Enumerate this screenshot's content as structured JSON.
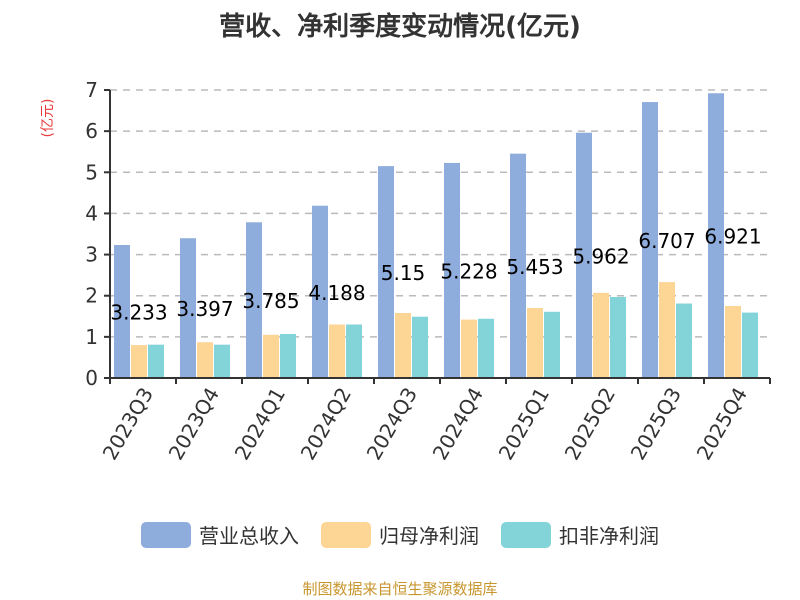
{
  "colors": {
    "series": [
      "#8eacdc",
      "#fdd595",
      "#83d4d8"
    ],
    "ylabel": "#e83b3b",
    "source": "#c8962e",
    "grid": "#bbbbbb",
    "axis": "#333333"
  },
  "chart_data": {
    "type": "bar",
    "title": "营收、净利季度变动情况(亿元)",
    "ylabel": "(亿元)",
    "xlabel": "",
    "ylim": [
      0,
      7
    ],
    "yticks": [
      "0",
      "1",
      "2",
      "3",
      "4",
      "5",
      "6",
      "7"
    ],
    "grid": true,
    "legend_position": "bottom",
    "categories": [
      "2023Q3",
      "2023Q4",
      "2024Q1",
      "2024Q2",
      "2024Q3",
      "2024Q4",
      "2025Q1",
      "2025Q2",
      "2025Q3",
      "2025Q4"
    ],
    "series": [
      {
        "name": "营业总收入",
        "values": [
          3.233,
          3.397,
          3.785,
          4.188,
          5.15,
          5.228,
          5.453,
          5.962,
          6.707,
          6.921
        ],
        "labels": [
          "3.233",
          "3.397",
          "3.785",
          "4.188",
          "5.15",
          "5.228",
          "5.453",
          "5.962",
          "6.707",
          "6.921"
        ]
      },
      {
        "name": "归母净利润",
        "values": [
          0.8,
          0.87,
          1.05,
          1.3,
          1.58,
          1.42,
          1.7,
          2.07,
          2.33,
          1.75
        ]
      },
      {
        "name": "扣非净利润",
        "values": [
          0.81,
          0.81,
          1.07,
          1.3,
          1.49,
          1.44,
          1.61,
          1.97,
          1.81,
          1.59
        ]
      }
    ]
  },
  "source": "制图数据来自恒生聚源数据库"
}
